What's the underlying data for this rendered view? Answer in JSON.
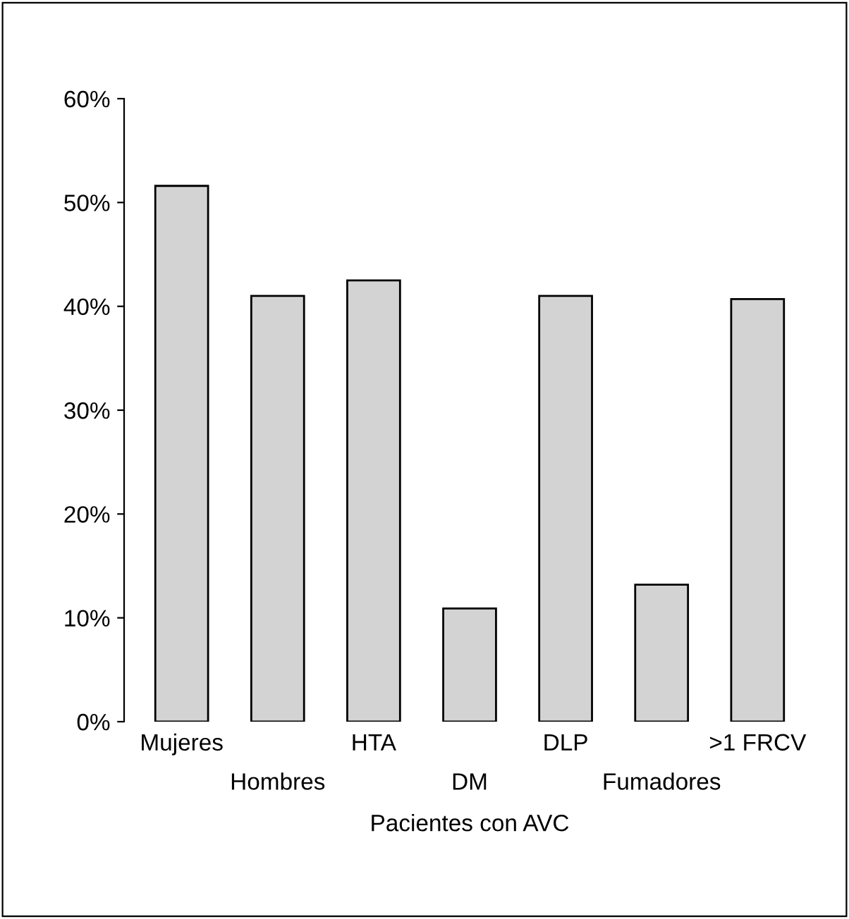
{
  "chart_data": {
    "type": "bar",
    "xlabel": "Pacientes con AVC",
    "categories": [
      "Mujeres",
      "Hombres",
      "HTA",
      "DM",
      "DLP",
      "Fumadores",
      ">1 FRCV"
    ],
    "values": [
      51.6,
      41.0,
      42.5,
      10.9,
      41.0,
      13.2,
      40.7
    ],
    "color": "#d3d3d3",
    "ylim": [
      0,
      60
    ],
    "yticks": [
      {
        "value": 0,
        "label": "0%"
      },
      {
        "value": 10,
        "label": "10%"
      },
      {
        "value": 20,
        "label": "20%"
      },
      {
        "value": 30,
        "label": "30%"
      },
      {
        "value": 40,
        "label": "40%"
      },
      {
        "value": 50,
        "label": "50%"
      },
      {
        "value": 60,
        "label": "60%"
      }
    ],
    "grid": false
  }
}
